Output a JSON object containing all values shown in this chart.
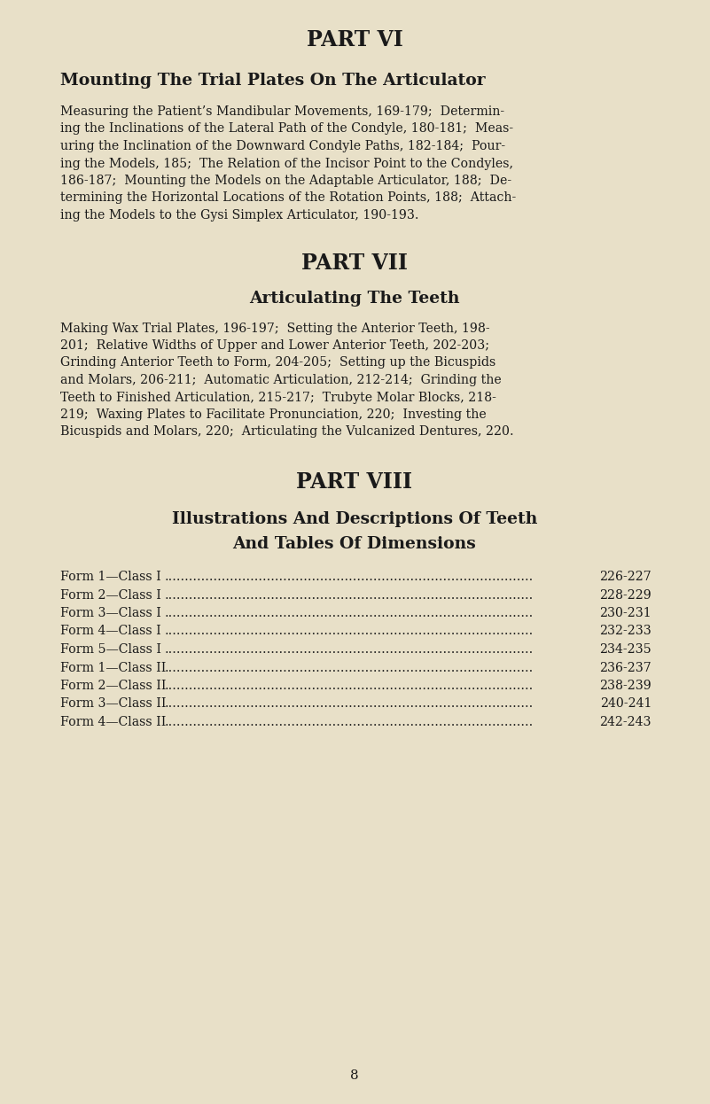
{
  "bg_color": "#e8e0c8",
  "text_color": "#1a1a1a",
  "page_number": "8",
  "part6_title": "PART VI",
  "part6_subtitle": "Mounting The Trial Plates On The Articulator",
  "part6_body_lines": [
    "Measuring the Patient’s Mandibular Movements, 169-179;  Determin-",
    "ing the Inclinations of the Lateral Path of the Condyle, 180-181;  Meas-",
    "uring the Inclination of the Downward Condyle Paths, 182-184;  Pour-",
    "ing the Models, 185;  The Relation of the Incisor Point to the Condyles,",
    "186-187;  Mounting the Models on the Adaptable Articulator, 188;  De-",
    "termining the Horizontal Locations of the Rotation Points, 188;  Attach-",
    "ing the Models to the Gysi Simplex Articulator, 190-193."
  ],
  "part7_title": "PART VII",
  "part7_subtitle": "Articulating The Teeth",
  "part7_body_lines": [
    "Making Wax Trial Plates, 196-197;  Setting the Anterior Teeth, 198-",
    "201;  Relative Widths of Upper and Lower Anterior Teeth, 202-203;",
    "Grinding Anterior Teeth to Form, 204-205;  Setting up the Bicuspids",
    "and Molars, 206-211;  Automatic Articulation, 212-214;  Grinding the",
    "Teeth to Finished Articulation, 215-217;  Trubyte Molar Blocks, 218-",
    "219;  Waxing Plates to Facilitate Pronunciation, 220;  Investing the",
    "Bicuspids and Molars, 220;  Articulating the Vulcanized Dentures, 220."
  ],
  "part8_title": "PART VIII",
  "part8_subtitle1": "Illustrations And Descriptions Of Teeth",
  "part8_subtitle2": "And Tables Of Dimensions",
  "toc_entries": [
    [
      "Form 1—Class I",
      "226-227"
    ],
    [
      "Form 2—Class I",
      "228-229"
    ],
    [
      "Form 3—Class I",
      "230-231"
    ],
    [
      "Form 4—Class I",
      "232-233"
    ],
    [
      "Form 5—Class I",
      "234-235"
    ],
    [
      "Form 1—Class II",
      "236-237"
    ],
    [
      "Form 2—Class II",
      "238-239"
    ],
    [
      "Form 3—Class II",
      "240-241"
    ],
    [
      "Form 4—Class II",
      "242-243"
    ]
  ]
}
